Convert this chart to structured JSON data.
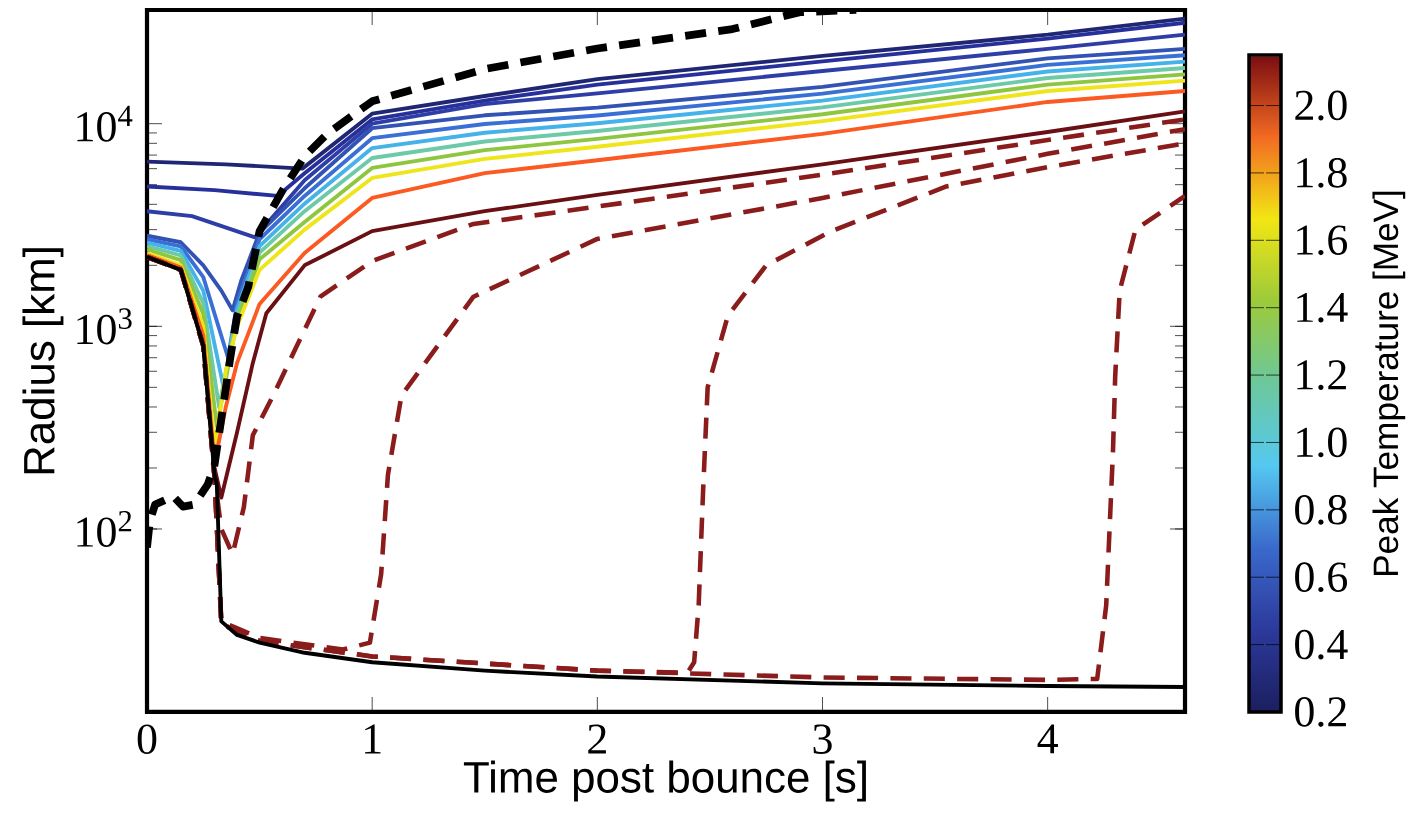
{
  "chart_data": {
    "type": "line",
    "xlabel": "Time post bounce [s]",
    "ylabel": "Radius [km]",
    "clabel": "Peak Temperature [MeV]",
    "xlim": [
      0,
      4.61
    ],
    "ylim": [
      12.5,
      36400
    ],
    "log": "y",
    "line_style": "solid",
    "xticks": [
      0,
      1,
      2,
      3,
      4
    ],
    "yticks": [
      {
        "value": 100,
        "label": "10$^{2}$"
      },
      {
        "value": 1000,
        "label": "10$^{3}$"
      },
      {
        "value": 10000,
        "label": "10$^{4}$"
      }
    ],
    "clim": [
      0.2,
      2.15
    ],
    "cticks": [
      {
        "value": 0.2,
        "label": "0.2"
      },
      {
        "value": 0.4,
        "label": "0.4"
      },
      {
        "value": 0.6,
        "label": "0.6"
      },
      {
        "value": 0.8,
        "label": "0.8"
      },
      {
        "value": 1.0,
        "label": "1.0"
      },
      {
        "value": 1.2,
        "label": "1.2"
      },
      {
        "value": 1.4,
        "label": "1.4"
      },
      {
        "value": 1.6,
        "label": "1.6"
      },
      {
        "value": 1.8,
        "label": "1.8"
      },
      {
        "value": 2.0,
        "label": "2.0"
      }
    ],
    "series": [
      {
        "color": "#1f2673",
        "x": [
          0,
          0.35,
          0.69,
          1,
          1.5,
          2,
          3,
          4,
          4.61
        ],
        "values": [
          6500,
          6300,
          6000,
          11200,
          13700,
          16600,
          21600,
          27500,
          33000
        ]
      },
      {
        "color": "#27309a",
        "x": [
          0,
          0.3,
          0.58,
          0.7,
          1,
          1.5,
          2,
          3,
          4,
          4.61
        ],
        "values": [
          4900,
          4700,
          4400,
          5700,
          10500,
          13000,
          15600,
          20300,
          26300,
          31500
        ]
      },
      {
        "color": "#2e3ea6",
        "x": [
          0,
          0.2,
          0.48,
          0.7,
          1,
          1.5,
          2,
          3,
          4,
          4.61
        ],
        "values": [
          3700,
          3500,
          2750,
          5260,
          10000,
          12500,
          14100,
          18200,
          23400,
          27500
        ]
      },
      {
        "color": "#3252b4",
        "x": [
          0,
          0.15,
          0.25,
          0.33,
          0.38,
          0.42,
          0.5,
          0.7,
          1,
          1.5,
          2,
          3,
          4,
          4.61
        ],
        "values": [
          2800,
          2600,
          2000,
          1500,
          1200,
          1700,
          2900,
          4800,
          9500,
          11000,
          12000,
          15200,
          21000,
          23400
        ]
      },
      {
        "color": "#3a70d6",
        "x": [
          0,
          0.15,
          0.25,
          0.36,
          0.4,
          0.5,
          0.7,
          1,
          1.5,
          2,
          3,
          4,
          4.61
        ],
        "values": [
          2690,
          2480,
          1750,
          700,
          1300,
          2690,
          4400,
          8480,
          9960,
          10980,
          14060,
          19500,
          21770
        ]
      },
      {
        "color": "#46b2ea",
        "x": [
          0,
          0.15,
          0.25,
          0.34,
          0.4,
          0.5,
          0.7,
          1,
          1.5,
          2,
          3,
          4,
          4.61
        ],
        "values": [
          2590,
          2360,
          1500,
          500,
          1220,
          2490,
          4030,
          7580,
          9020,
          10050,
          13000,
          18100,
          20240
        ]
      },
      {
        "color": "#6ccaa8",
        "x": [
          0,
          0.15,
          0.25,
          0.32,
          0.4,
          0.5,
          0.7,
          1,
          1.5,
          2,
          3,
          4,
          4.61
        ],
        "values": [
          2490,
          2240,
          1300,
          400,
          1140,
          2310,
          3700,
          6770,
          8170,
          9200,
          12030,
          16800,
          18830
        ]
      },
      {
        "color": "#8fc640",
        "x": [
          0,
          0.15,
          0.25,
          0.31,
          0.4,
          0.5,
          0.7,
          1,
          1.5,
          2,
          3,
          4,
          4.61
        ],
        "values": [
          2400,
          2120,
          1150,
          320,
          1070,
          2140,
          3270,
          6050,
          7400,
          8420,
          11130,
          15600,
          17510
        ]
      },
      {
        "color": "#efe51c",
        "x": [
          0,
          0.15,
          0.25,
          0.3,
          0.35,
          0.4,
          0.5,
          0.7,
          1,
          1.5,
          2,
          3,
          4,
          4.61
        ],
        "values": [
          2300,
          2000,
          1000,
          250,
          600,
          1000,
          1900,
          3000,
          5400,
          6700,
          7700,
          10300,
          14500,
          16300
        ]
      },
      {
        "color": "#fb5a22",
        "x": [
          0,
          0.15,
          0.25,
          0.3,
          0.35,
          0.4,
          0.5,
          0.7,
          1,
          1.5,
          2,
          3,
          4,
          4.61
        ],
        "values": [
          2250,
          1950,
          900,
          210,
          400,
          660,
          1290,
          2300,
          4300,
          5700,
          6600,
          8900,
          12800,
          14500
        ]
      },
      {
        "color": "#6a1014",
        "x": [
          0,
          0.15,
          0.25,
          0.3,
          0.33,
          0.4,
          0.47,
          0.53,
          0.7,
          1,
          1.5,
          2,
          3,
          4,
          4.61
        ],
        "values": [
          2200,
          1900,
          800,
          200,
          143,
          300,
          660,
          1160,
          2000,
          2950,
          3700,
          4450,
          6300,
          9100,
          11500
        ]
      },
      {
        "color": "#8b1c1c",
        "line_style": "dashed",
        "x": [
          0,
          0.15,
          0.25,
          0.3,
          0.33,
          0.38,
          0.43,
          0.47,
          0.56,
          0.77,
          1,
          1.45,
          2,
          3,
          4,
          4.61
        ],
        "values": [
          2200,
          1900,
          800,
          180,
          100,
          75,
          128,
          290,
          455,
          1400,
          2100,
          3200,
          3900,
          5600,
          8300,
          10500
        ]
      },
      {
        "color": "#8b1c1c",
        "line_style": "dashed",
        "x": [
          0,
          0.15,
          0.25,
          0.3,
          0.33,
          0.5,
          0.87,
          0.99,
          1.04,
          1.07,
          1.13,
          1.45,
          2,
          3,
          4,
          4.61
        ],
        "values": [
          2200,
          1900,
          800,
          180,
          35,
          29,
          25.4,
          27.5,
          60,
          185,
          455,
          1400,
          2700,
          4300,
          7100,
          9400
        ]
      },
      {
        "color": "#8b1c1c",
        "line_style": "dashed",
        "x": [
          0,
          0.15,
          0.25,
          0.3,
          0.33,
          0.5,
          1,
          2,
          2.4,
          2.43,
          2.45,
          2.47,
          2.49,
          2.58,
          2.75,
          3.04,
          3.55,
          4,
          4.61
        ],
        "values": [
          2200,
          1900,
          800,
          180,
          34,
          28,
          23.5,
          20,
          19.5,
          22,
          42,
          157,
          500,
          1130,
          2000,
          2950,
          4900,
          6100,
          8000
        ]
      },
      {
        "color": "#8b1c1c",
        "line_style": "dashed",
        "x": [
          0,
          0.15,
          0.25,
          0.3,
          0.33,
          0.5,
          1,
          2,
          3,
          4,
          4.22,
          4.26,
          4.29,
          4.3,
          4.32,
          4.39,
          4.61
        ],
        "values": [
          2200,
          1900,
          800,
          180,
          34,
          28,
          23.5,
          20,
          18.5,
          18,
          18.2,
          42,
          240,
          570,
          1500,
          3000,
          4400
        ]
      },
      {
        "color": "#000000",
        "x": [
          0,
          0.15,
          0.25,
          0.3,
          0.31,
          0.33,
          0.4,
          0.5,
          0.7,
          1,
          1.5,
          2,
          3,
          4,
          4.61
        ],
        "values": [
          2200,
          1900,
          800,
          185,
          166,
          35,
          30,
          27.5,
          24.5,
          22,
          20,
          18.7,
          17.3,
          16.8,
          16.6
        ]
      },
      {
        "color": "#000000",
        "line_style": "dashed",
        "x": [
          0,
          0.013,
          0.036,
          0.116,
          0.16,
          0.21,
          0.27,
          0.3,
          0.33,
          0.37,
          0.4,
          0.45,
          0.5,
          0.6,
          0.7,
          0.8,
          1,
          1.5,
          2,
          2.6,
          2.9,
          3.15
        ],
        "values": [
          81,
          110,
          132,
          145,
          129,
          132,
          166,
          207,
          350,
          700,
          1120,
          1570,
          2950,
          4650,
          6900,
          8900,
          12900,
          18600,
          23500,
          29300,
          35500,
          36400
        ]
      }
    ]
  }
}
